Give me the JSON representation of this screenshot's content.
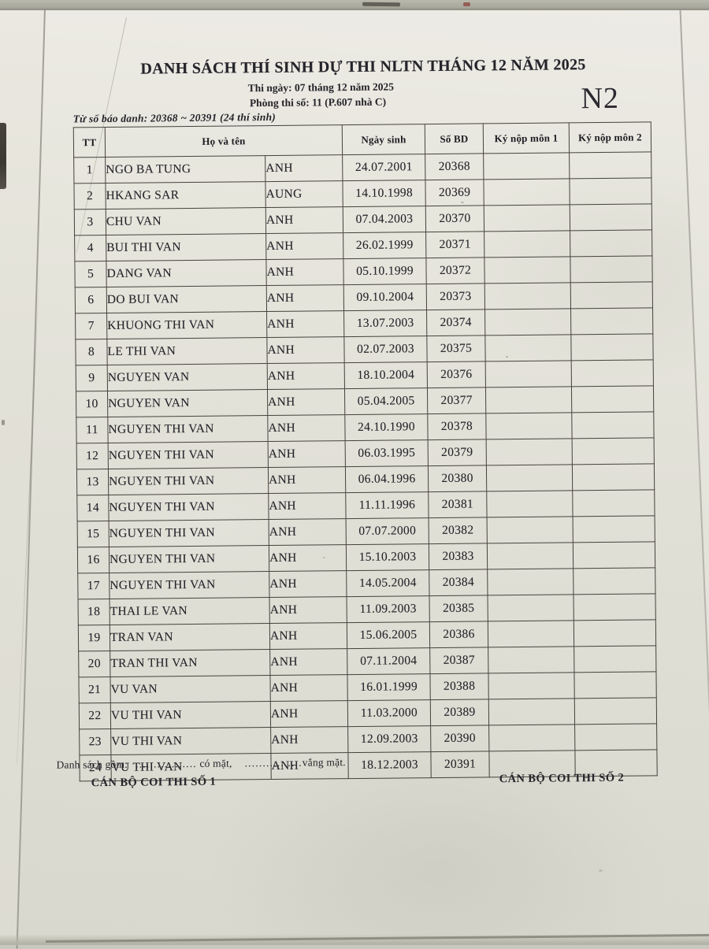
{
  "page": {
    "badge": "N2",
    "title": "DANH SÁCH THÍ SINH DỰ THI NLTN THÁNG 12 NĂM 2025",
    "subtitle1": "Thi ngày: 07 tháng 12 năm 2025",
    "subtitle2": "Phòng thi số: 11 (P.607 nhà C)",
    "range_note": "Từ số báo danh: 20368 ~ 20391 (24 thí sinh)"
  },
  "table": {
    "headers": {
      "tt": "TT",
      "name": "Họ và tên",
      "dob": "Ngày sinh",
      "sobd": "Số BD",
      "sign1": "Ký nộp môn 1",
      "sign2": "Ký nộp môn 2"
    },
    "rows": [
      {
        "tt": "1",
        "last": "NGO BA TUNG",
        "first": "ANH",
        "dob": "24.07.2001",
        "sobd": "20368"
      },
      {
        "tt": "2",
        "last": "HKANG SAR",
        "first": "AUNG",
        "dob": "14.10.1998",
        "sobd": "20369"
      },
      {
        "tt": "3",
        "last": "CHU VAN",
        "first": "ANH",
        "dob": "07.04.2003",
        "sobd": "20370"
      },
      {
        "tt": "4",
        "last": "BUI THI VAN",
        "first": "ANH",
        "dob": "26.02.1999",
        "sobd": "20371"
      },
      {
        "tt": "5",
        "last": "DANG VAN",
        "first": "ANH",
        "dob": "05.10.1999",
        "sobd": "20372"
      },
      {
        "tt": "6",
        "last": "DO BUI VAN",
        "first": "ANH",
        "dob": "09.10.2004",
        "sobd": "20373"
      },
      {
        "tt": "7",
        "last": "KHUONG THI VAN",
        "first": "ANH",
        "dob": "13.07.2003",
        "sobd": "20374"
      },
      {
        "tt": "8",
        "last": "LE THI VAN",
        "first": "ANH",
        "dob": "02.07.2003",
        "sobd": "20375"
      },
      {
        "tt": "9",
        "last": "NGUYEN VAN",
        "first": "ANH",
        "dob": "18.10.2004",
        "sobd": "20376"
      },
      {
        "tt": "10",
        "last": "NGUYEN VAN",
        "first": "ANH",
        "dob": "05.04.2005",
        "sobd": "20377"
      },
      {
        "tt": "11",
        "last": "NGUYEN THI VAN",
        "first": "ANH",
        "dob": "24.10.1990",
        "sobd": "20378"
      },
      {
        "tt": "12",
        "last": "NGUYEN THI VAN",
        "first": "ANH",
        "dob": "06.03.1995",
        "sobd": "20379"
      },
      {
        "tt": "13",
        "last": "NGUYEN THI VAN",
        "first": "ANH",
        "dob": "06.04.1996",
        "sobd": "20380"
      },
      {
        "tt": "14",
        "last": "NGUYEN THI VAN",
        "first": "ANH",
        "dob": "11.11.1996",
        "sobd": "20381"
      },
      {
        "tt": "15",
        "last": "NGUYEN THI VAN",
        "first": "ANH",
        "dob": "07.07.2000",
        "sobd": "20382"
      },
      {
        "tt": "16",
        "last": "NGUYEN THI VAN",
        "first": "ANH",
        "dob": "15.10.2003",
        "sobd": "20383"
      },
      {
        "tt": "17",
        "last": "NGUYEN THI VAN",
        "first": "ANH",
        "dob": "14.05.2004",
        "sobd": "20384"
      },
      {
        "tt": "18",
        "last": "THAI LE VAN",
        "first": "ANH",
        "dob": "11.09.2003",
        "sobd": "20385"
      },
      {
        "tt": "19",
        "last": "TRAN VAN",
        "first": "ANH",
        "dob": "15.06.2005",
        "sobd": "20386"
      },
      {
        "tt": "20",
        "last": "TRAN THI VAN",
        "first": "ANH",
        "dob": "07.11.2004",
        "sobd": "20387"
      },
      {
        "tt": "21",
        "last": "VU VAN",
        "first": "ANH",
        "dob": "16.01.1999",
        "sobd": "20388"
      },
      {
        "tt": "22",
        "last": "VU THI VAN",
        "first": "ANH",
        "dob": "11.03.2000",
        "sobd": "20389"
      },
      {
        "tt": "23",
        "last": "VU THI VAN",
        "first": "ANH",
        "dob": "12.09.2003",
        "sobd": "20390"
      },
      {
        "tt": "24",
        "last": "VU THI VAN",
        "first": "ANH",
        "dob": "18.12.2003",
        "sobd": "20391"
      }
    ]
  },
  "footer": {
    "summary_prefix": "Danh sách gồm:",
    "dots1": ".................",
    "present_label": "có mặt,",
    "dots2": "................",
    "absent_label": "vắng mặt.",
    "official1": "CÁN BỘ COI THI SỐ 1",
    "official2": "CÁN BỘ COI THI SỐ 2"
  },
  "colors": {
    "paper": "#e3e2d9",
    "table_line": "#45423c",
    "ink": "#25242a"
  }
}
